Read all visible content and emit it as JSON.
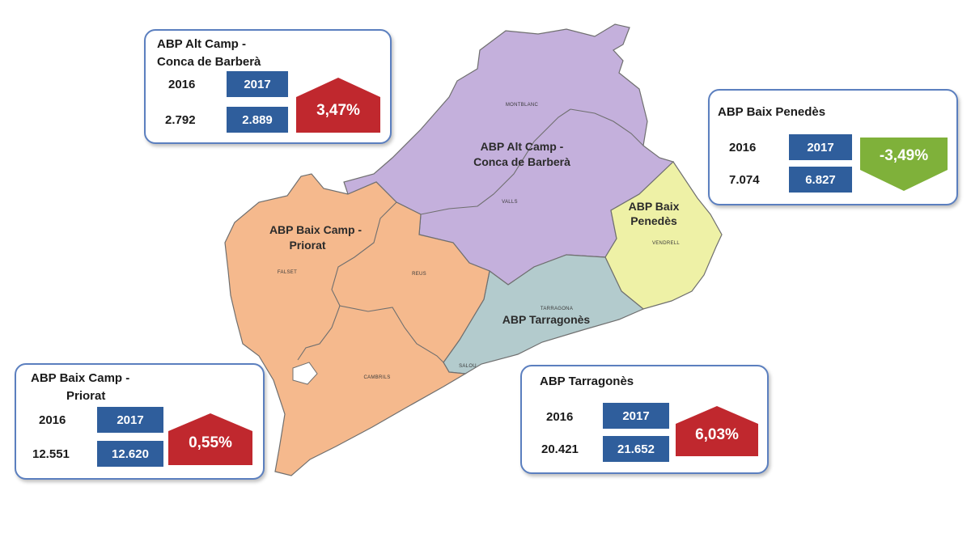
{
  "colors": {
    "card_border": "#5b7fbf",
    "year_box": "#2f5e9c",
    "increase": "#c0282e",
    "decrease": "#7fb13a",
    "alt_camp": "#c4b0dc",
    "baix_camp": "#f5b98d",
    "tarragones": "#b3cbcd",
    "baix_penedes": "#eef1a6"
  },
  "map": {
    "regions": {
      "alt_camp": "ABP Alt Camp - Conca de Barberà",
      "baix_camp": "ABP Baix Camp - Priorat",
      "tarragones": "ABP Tarragonès",
      "baix_penedes": "ABP Baix Penedès"
    },
    "region_lines": {
      "alt_camp_1": "ABP Alt Camp -",
      "alt_camp_2": "Conca de Barberà",
      "baix_camp_1": "ABP Baix Camp -",
      "baix_camp_2": "Priorat",
      "tarragones_1": "ABP Tarragonès",
      "baix_penedes_1": "ABP Baix",
      "baix_penedes_2": "Penedès"
    },
    "towns": {
      "montblanc": "MONTBLANC",
      "valls": "VALLS",
      "falset": "FALSET",
      "reus": "REUS",
      "cambrils": "CAMBRILS",
      "tarragona": "TARRAGONA",
      "salou": "SALOU",
      "vendrell": "VENDRELL"
    }
  },
  "cards": {
    "alt_camp": {
      "title_line1": "ABP Alt Camp -",
      "title_line2": "Conca de Barberà",
      "year_a": "2016",
      "year_b": "2017",
      "value_a": "2.792",
      "value_b": "2.889",
      "change": "3,47%",
      "trend": "up"
    },
    "baix_penedes": {
      "title_line1": "ABP Baix Penedès",
      "year_a": "2016",
      "year_b": "2017",
      "value_a": "7.074",
      "value_b": "6.827",
      "change": "-3,49%",
      "trend": "down"
    },
    "baix_camp": {
      "title_line1": "ABP Baix Camp -",
      "title_line2": "Priorat",
      "year_a": "2016",
      "year_b": "2017",
      "value_a": "12.551",
      "value_b": "12.620",
      "change": "0,55%",
      "trend": "up"
    },
    "tarragones": {
      "title_line1": "ABP Tarragonès",
      "year_a": "2016",
      "year_b": "2017",
      "value_a": "20.421",
      "value_b": "21.652",
      "change": "6,03%",
      "trend": "up"
    }
  }
}
